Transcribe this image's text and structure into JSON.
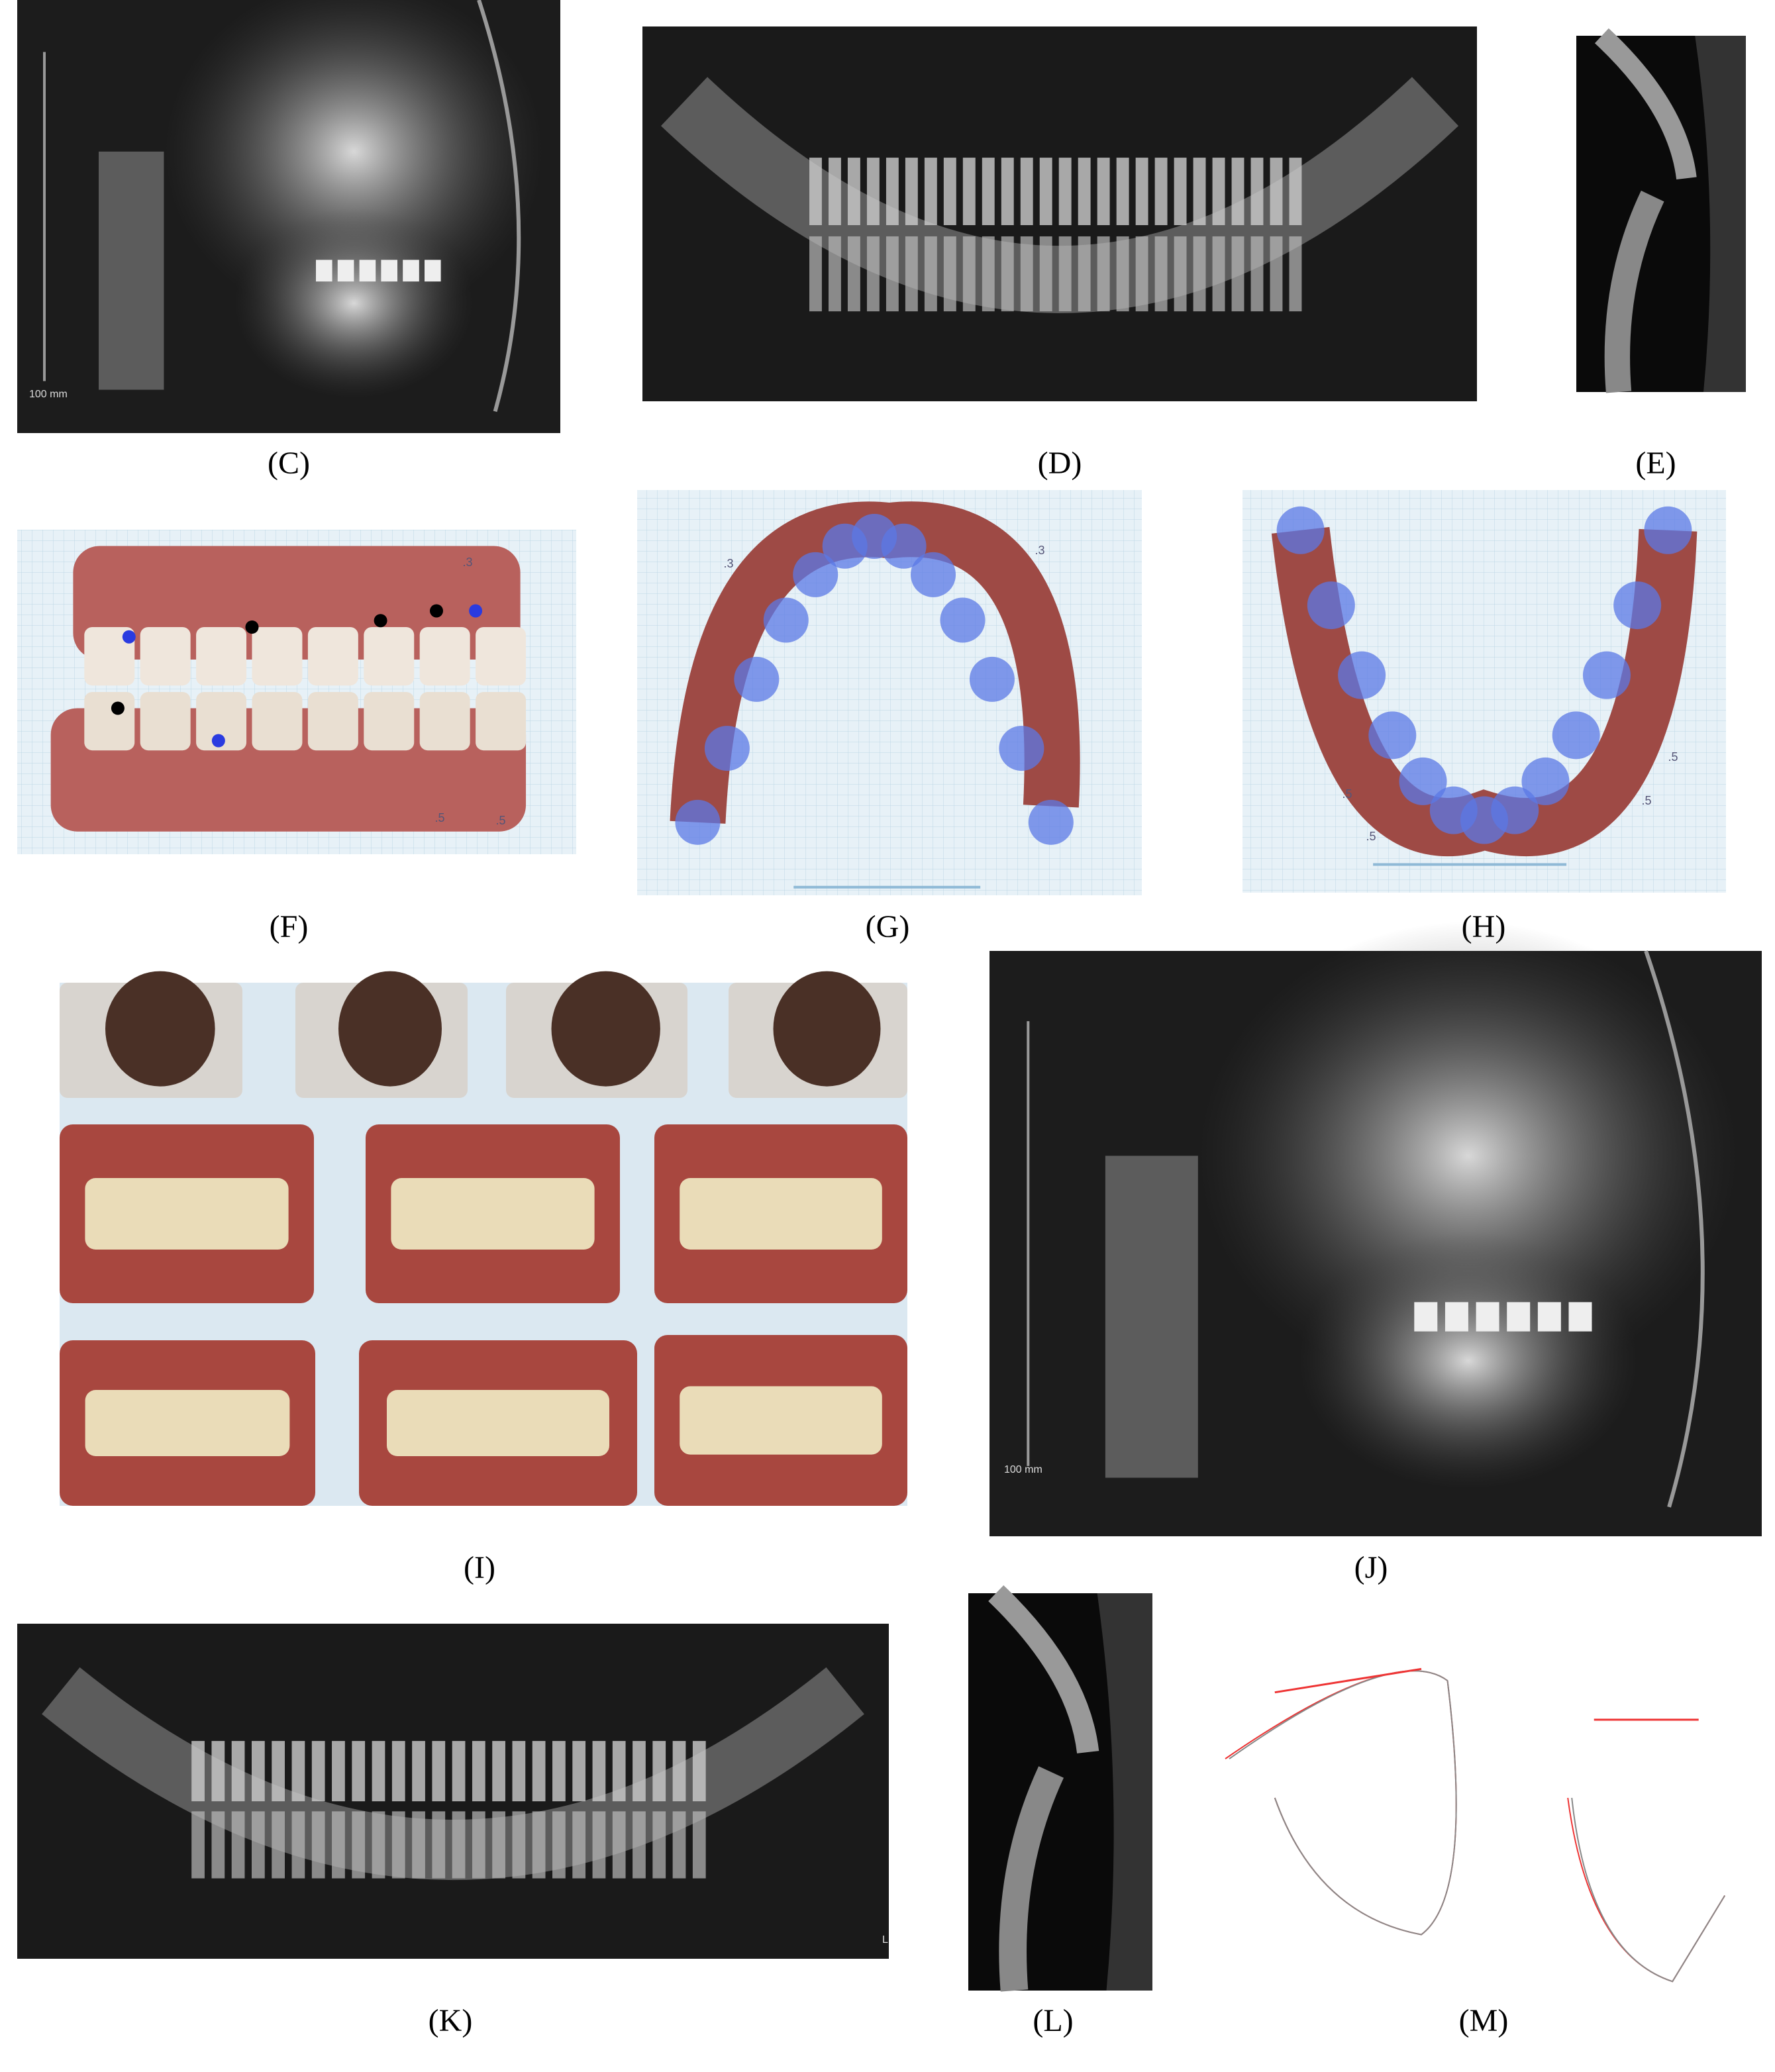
{
  "figure": {
    "panels": [
      {
        "label": "(C)",
        "texts": [
          "100 mm"
        ]
      },
      {
        "label": "(D)"
      },
      {
        "label": "(E)"
      },
      {
        "label": "(F)",
        "texts": [
          ".3",
          ".5",
          ".5"
        ]
      },
      {
        "label": "(G)",
        "texts": [
          ".3",
          ".3"
        ]
      },
      {
        "label": "(H)",
        "texts": [
          ".5",
          ".5",
          ".5",
          ".5"
        ]
      },
      {
        "label": "(I)"
      },
      {
        "label": "(J)",
        "texts": [
          "100 mm"
        ]
      },
      {
        "label": "(K)",
        "texts": [
          "L"
        ]
      },
      {
        "label": "(L)"
      },
      {
        "label": "(M)"
      }
    ]
  }
}
